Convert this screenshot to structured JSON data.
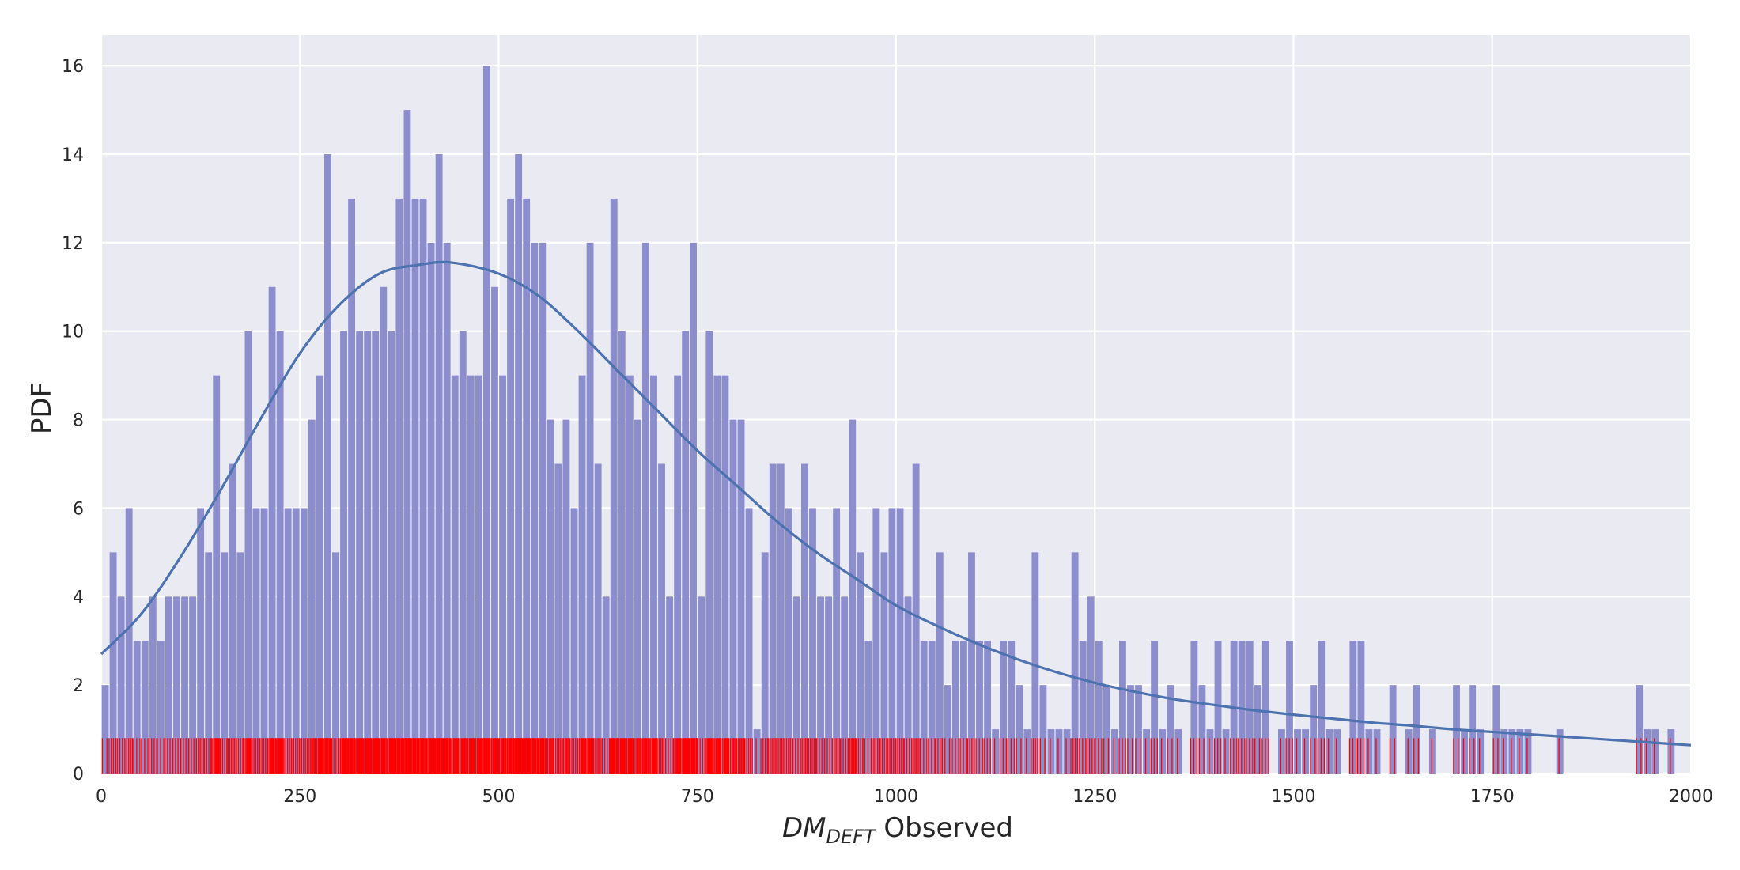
{
  "chart_data": {
    "type": "bar",
    "subtype": "histogram-with-fitted-curve-and-rug",
    "xlabel": {
      "italic_base": "DM",
      "subscript": "DEFT",
      "suffix": " Observed"
    },
    "ylabel": "PDF",
    "xlim": [
      0,
      2000
    ],
    "ylim": [
      0,
      16.7
    ],
    "xticks": [
      0,
      250,
      500,
      750,
      1000,
      1250,
      1500,
      1750,
      2000
    ],
    "yticks": [
      0,
      2,
      4,
      6,
      8,
      10,
      12,
      14,
      16
    ],
    "grid": true,
    "bin_width": 10,
    "colors": {
      "background": "#eaeaf2",
      "grid": "#ffffff",
      "bars": "#8c8dcc",
      "curve": "#4c72b0",
      "rug": "#ff0000"
    },
    "bars": [
      [
        0,
        2
      ],
      [
        10,
        5
      ],
      [
        20,
        4
      ],
      [
        30,
        6
      ],
      [
        40,
        3
      ],
      [
        50,
        3
      ],
      [
        60,
        4
      ],
      [
        70,
        3
      ],
      [
        80,
        4
      ],
      [
        90,
        4
      ],
      [
        100,
        4
      ],
      [
        110,
        4
      ],
      [
        120,
        6
      ],
      [
        130,
        5
      ],
      [
        140,
        9
      ],
      [
        150,
        5
      ],
      [
        160,
        7
      ],
      [
        170,
        5
      ],
      [
        180,
        10
      ],
      [
        190,
        6
      ],
      [
        200,
        6
      ],
      [
        210,
        11
      ],
      [
        220,
        10
      ],
      [
        230,
        6
      ],
      [
        240,
        6
      ],
      [
        250,
        6
      ],
      [
        260,
        8
      ],
      [
        270,
        9
      ],
      [
        280,
        14
      ],
      [
        290,
        5
      ],
      [
        300,
        10
      ],
      [
        310,
        13
      ],
      [
        320,
        10
      ],
      [
        330,
        10
      ],
      [
        340,
        10
      ],
      [
        350,
        11
      ],
      [
        360,
        10
      ],
      [
        370,
        13
      ],
      [
        380,
        15
      ],
      [
        390,
        13
      ],
      [
        400,
        13
      ],
      [
        410,
        12
      ],
      [
        420,
        14
      ],
      [
        430,
        12
      ],
      [
        440,
        9
      ],
      [
        450,
        10
      ],
      [
        460,
        9
      ],
      [
        470,
        9
      ],
      [
        480,
        16
      ],
      [
        490,
        11
      ],
      [
        500,
        9
      ],
      [
        510,
        13
      ],
      [
        520,
        14
      ],
      [
        530,
        13
      ],
      [
        540,
        12
      ],
      [
        550,
        12
      ],
      [
        560,
        8
      ],
      [
        570,
        7
      ],
      [
        580,
        8
      ],
      [
        590,
        6
      ],
      [
        600,
        9
      ],
      [
        610,
        12
      ],
      [
        620,
        7
      ],
      [
        630,
        4
      ],
      [
        640,
        13
      ],
      [
        650,
        10
      ],
      [
        660,
        9
      ],
      [
        670,
        8
      ],
      [
        680,
        12
      ],
      [
        690,
        9
      ],
      [
        700,
        7
      ],
      [
        710,
        4
      ],
      [
        720,
        9
      ],
      [
        730,
        10
      ],
      [
        740,
        12
      ],
      [
        750,
        4
      ],
      [
        760,
        10
      ],
      [
        770,
        9
      ],
      [
        780,
        9
      ],
      [
        790,
        8
      ],
      [
        800,
        8
      ],
      [
        810,
        6
      ],
      [
        820,
        1
      ],
      [
        830,
        5
      ],
      [
        840,
        7
      ],
      [
        850,
        7
      ],
      [
        860,
        6
      ],
      [
        870,
        4
      ],
      [
        880,
        7
      ],
      [
        890,
        6
      ],
      [
        900,
        4
      ],
      [
        910,
        4
      ],
      [
        920,
        6
      ],
      [
        930,
        4
      ],
      [
        940,
        8
      ],
      [
        950,
        5
      ],
      [
        960,
        3
      ],
      [
        970,
        6
      ],
      [
        980,
        5
      ],
      [
        990,
        6
      ],
      [
        1000,
        6
      ],
      [
        1010,
        4
      ],
      [
        1020,
        7
      ],
      [
        1030,
        3
      ],
      [
        1040,
        3
      ],
      [
        1050,
        5
      ],
      [
        1060,
        2
      ],
      [
        1070,
        3
      ],
      [
        1080,
        3
      ],
      [
        1090,
        5
      ],
      [
        1100,
        3
      ],
      [
        1110,
        3
      ],
      [
        1120,
        1
      ],
      [
        1130,
        3
      ],
      [
        1140,
        3
      ],
      [
        1150,
        2
      ],
      [
        1160,
        1
      ],
      [
        1170,
        5
      ],
      [
        1180,
        2
      ],
      [
        1190,
        1
      ],
      [
        1200,
        1
      ],
      [
        1210,
        1
      ],
      [
        1220,
        5
      ],
      [
        1230,
        3
      ],
      [
        1240,
        4
      ],
      [
        1250,
        3
      ],
      [
        1260,
        2
      ],
      [
        1270,
        1
      ],
      [
        1280,
        3
      ],
      [
        1290,
        2
      ],
      [
        1300,
        2
      ],
      [
        1310,
        1
      ],
      [
        1320,
        3
      ],
      [
        1330,
        1
      ],
      [
        1340,
        2
      ],
      [
        1350,
        1
      ],
      [
        1370,
        3
      ],
      [
        1380,
        2
      ],
      [
        1390,
        1
      ],
      [
        1400,
        3
      ],
      [
        1410,
        1
      ],
      [
        1420,
        3
      ],
      [
        1430,
        3
      ],
      [
        1440,
        3
      ],
      [
        1450,
        2
      ],
      [
        1460,
        3
      ],
      [
        1480,
        1
      ],
      [
        1490,
        3
      ],
      [
        1500,
        1
      ],
      [
        1510,
        1
      ],
      [
        1520,
        2
      ],
      [
        1530,
        3
      ],
      [
        1540,
        1
      ],
      [
        1550,
        1
      ],
      [
        1570,
        3
      ],
      [
        1580,
        3
      ],
      [
        1590,
        1
      ],
      [
        1600,
        1
      ],
      [
        1620,
        2
      ],
      [
        1640,
        1
      ],
      [
        1650,
        2
      ],
      [
        1670,
        1
      ],
      [
        1700,
        2
      ],
      [
        1710,
        1
      ],
      [
        1720,
        2
      ],
      [
        1730,
        1
      ],
      [
        1750,
        2
      ],
      [
        1760,
        1
      ],
      [
        1770,
        1
      ],
      [
        1780,
        1
      ],
      [
        1790,
        1
      ],
      [
        1830,
        1
      ],
      [
        1930,
        2
      ],
      [
        1940,
        1
      ],
      [
        1950,
        1
      ],
      [
        1970,
        1
      ]
    ],
    "curve": {
      "x": [
        0,
        50,
        100,
        150,
        200,
        250,
        300,
        350,
        400,
        441,
        500,
        550,
        600,
        650,
        700,
        750,
        800,
        850,
        900,
        950,
        1000,
        1050,
        1100,
        1150,
        1200,
        1250,
        1300,
        1350,
        1400,
        1450,
        1500,
        1550,
        1600,
        1650,
        1700,
        1750,
        1800,
        1850,
        1900,
        1950,
        2000
      ],
      "y": [
        2.7,
        3.6,
        4.9,
        6.4,
        8.0,
        9.5,
        10.6,
        11.3,
        11.5,
        11.55,
        11.3,
        10.8,
        10.0,
        9.1,
        8.2,
        7.3,
        6.5,
        5.7,
        5.0,
        4.4,
        3.8,
        3.35,
        2.95,
        2.6,
        2.3,
        2.05,
        1.85,
        1.68,
        1.55,
        1.43,
        1.33,
        1.24,
        1.15,
        1.08,
        1.0,
        0.94,
        0.88,
        0.82,
        0.76,
        0.7,
        0.64
      ]
    },
    "rug_height": 0.8
  }
}
